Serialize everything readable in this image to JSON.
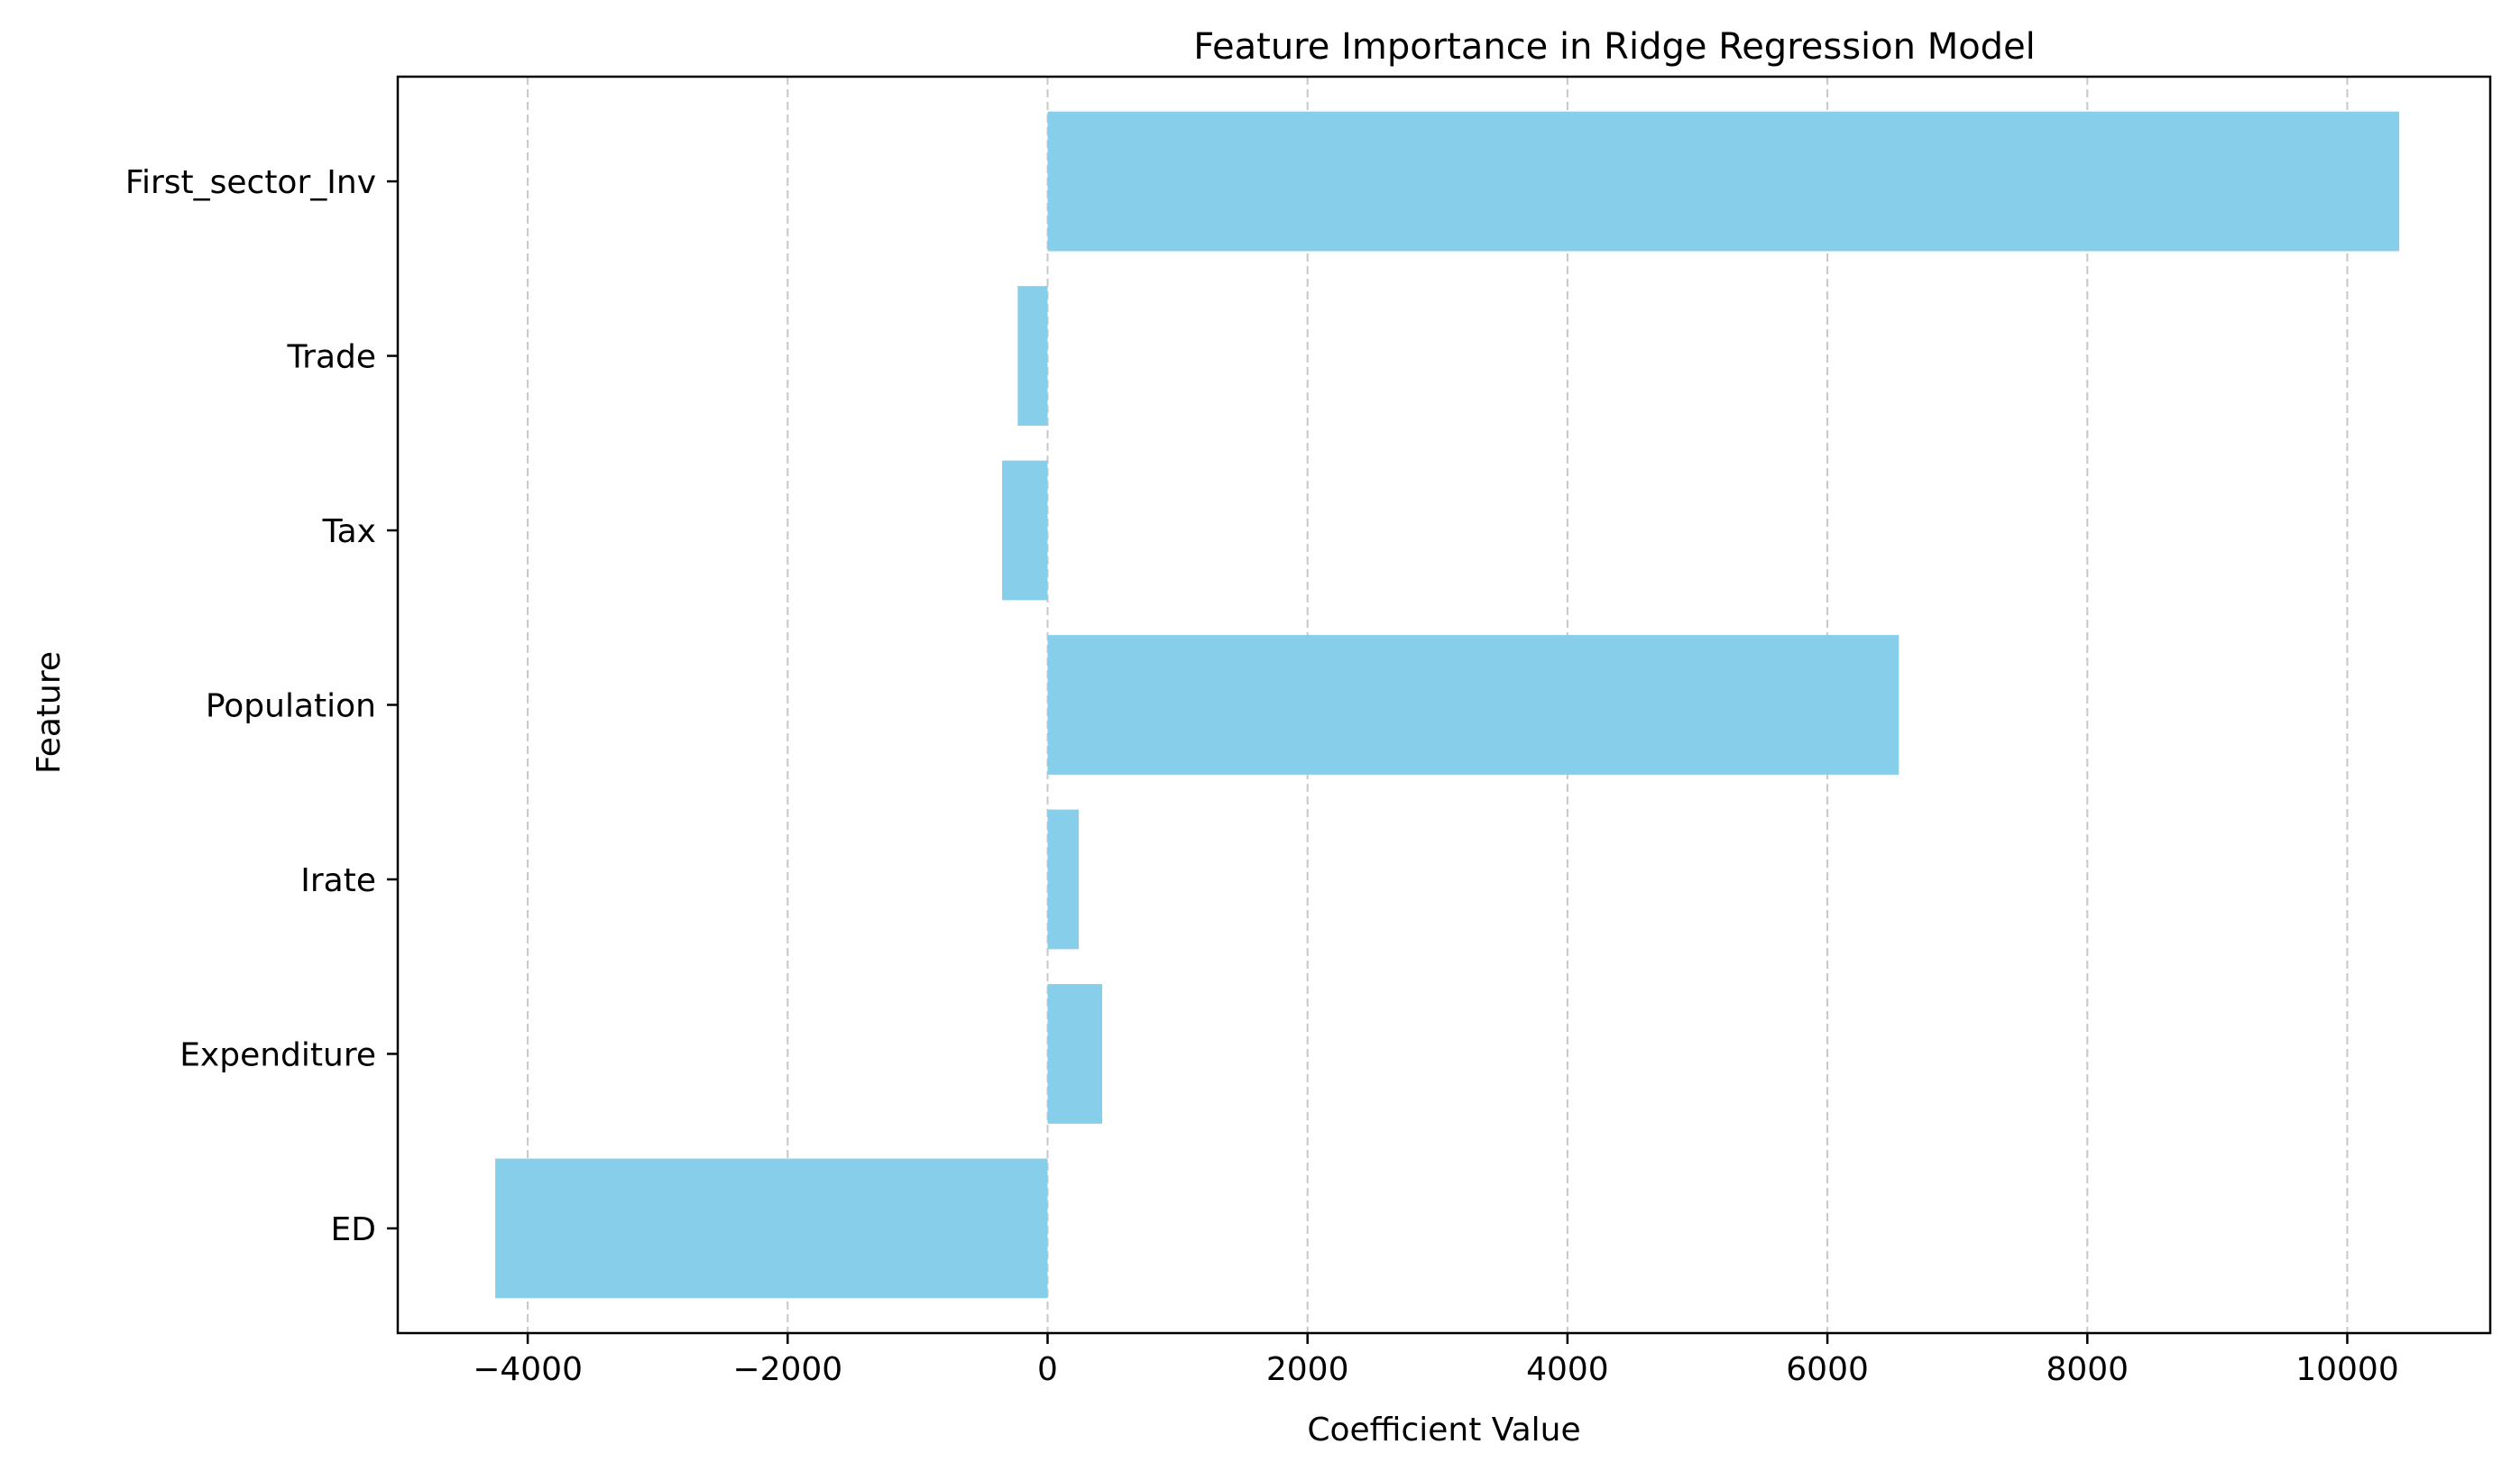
{
  "chart_data": {
    "type": "bar",
    "orientation": "horizontal",
    "title": "Feature Importance in Ridge Regression Model",
    "xlabel": "Coefficient Value",
    "ylabel": "Feature",
    "categories": [
      "ED",
      "Expenditure",
      "Irate",
      "Population",
      "Tax",
      "Trade",
      "First_sector_Inv"
    ],
    "values": [
      -4250,
      420,
      240,
      6550,
      -350,
      -230,
      10400
    ],
    "xlim": [
      -5000,
      11100
    ],
    "xticks": [
      -4000,
      -2000,
      0,
      2000,
      4000,
      6000,
      8000,
      10000
    ],
    "xtick_labels": [
      "−4000",
      "−2000",
      "0",
      "2000",
      "4000",
      "6000",
      "8000",
      "10000"
    ],
    "grid": {
      "x": true,
      "y": false,
      "style": "dashed"
    },
    "bar_color": "#87CEEB",
    "grid_color": "#c8c8c8",
    "axis_color": "#000000"
  }
}
